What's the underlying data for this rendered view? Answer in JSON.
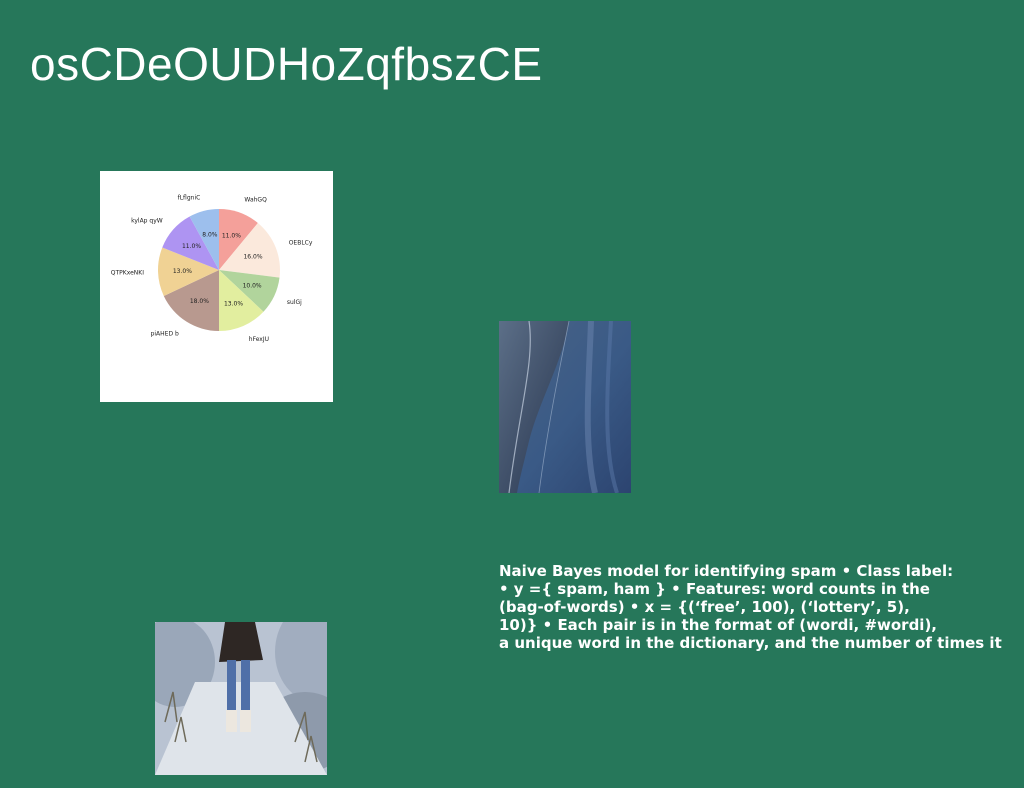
{
  "slide": {
    "title": "osCDeOUDHoZqfbszCE",
    "note_lines": [
      "Naive Bayes model for identifying spam • Class label:",
      "• y ={ spam, ham } • Features: word counts in the",
      "(bag-of-words) • x = {(‘free’, 100), (‘lottery’, 5),",
      "10)} • Each pair is in the format of (wordi, #wordi),",
      "a unique word in the dictionary, and the number of times it"
    ]
  },
  "chart_data": {
    "type": "pie",
    "categories": [
      "WahGQ",
      "OEBLCy",
      "sulGj",
      "hFexJU",
      "piAHED b",
      "QTPKxeNKI",
      "kylAp qyW",
      "fLflgniC"
    ],
    "values": [
      11.0,
      16.0,
      10.0,
      13.0,
      18.0,
      13.0,
      11.0,
      8.0
    ],
    "value_labels": [
      "11.0%",
      "16.0%",
      "10.0%",
      "13.0%",
      "18.0%",
      "13.0%",
      "11.0%",
      "8.0%"
    ],
    "colors": [
      "#f4a09a",
      "#fbe9dc",
      "#b1d49c",
      "#e2ee9f",
      "#b8998f",
      "#f0d294",
      "#ae94f2",
      "#9dbfed"
    ],
    "start": "top, clockwise"
  }
}
